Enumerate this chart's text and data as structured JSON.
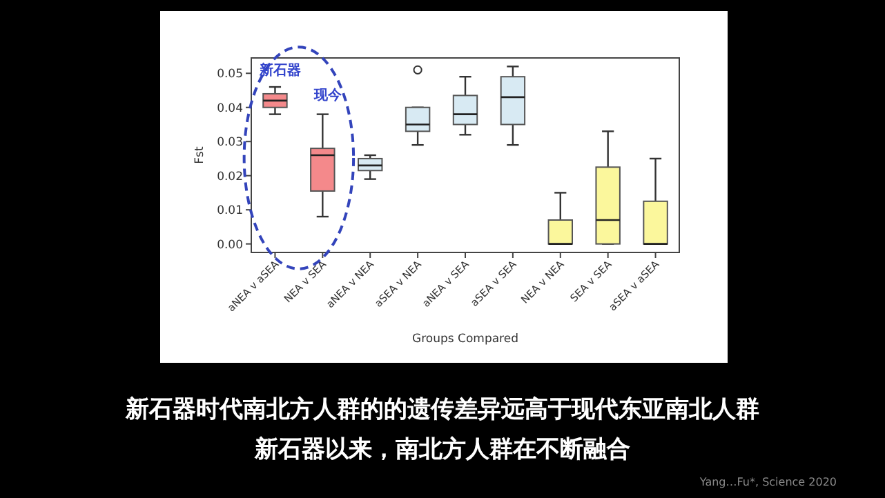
{
  "chart_data": {
    "type": "box",
    "title": "新石器时代南北方人群的的遗传差异远高于现代东亚南北人群",
    "subtitle": "新石器以来，南北方人群在不断融合",
    "xlabel": "Groups Compared",
    "ylabel": "Fst",
    "categories": [
      "aNEA v aSEA",
      "NEA v SEA",
      "aNEA v NEA",
      "aSEA v NEA",
      "aNEA v SEA",
      "aSEA v SEA",
      "NEA v NEA",
      "SEA v SEA",
      "aSEA v aSEA"
    ],
    "colors": [
      "#f4898b",
      "#f4898b",
      "#d8eaf3",
      "#d8eaf3",
      "#d8eaf3",
      "#d8eaf3",
      "#fbf79c",
      "#fbf79c",
      "#fbf79c"
    ],
    "boxes": [
      {
        "low": 0.038,
        "q1": 0.04,
        "median": 0.042,
        "q3": 0.044,
        "high": 0.046
      },
      {
        "low": 0.008,
        "q1": 0.0155,
        "median": 0.026,
        "q3": 0.028,
        "high": 0.038
      },
      {
        "low": 0.019,
        "q1": 0.0215,
        "median": 0.023,
        "q3": 0.025,
        "high": 0.026
      },
      {
        "low": 0.029,
        "q1": 0.033,
        "median": 0.035,
        "q3": 0.04,
        "high": 0.04,
        "outliers": [
          0.051
        ]
      },
      {
        "low": 0.032,
        "q1": 0.035,
        "median": 0.038,
        "q3": 0.0435,
        "high": 0.049
      },
      {
        "low": 0.029,
        "q1": 0.035,
        "median": 0.043,
        "q3": 0.049,
        "high": 0.052
      },
      {
        "low": 0,
        "q1": 0,
        "median": 0,
        "q3": 0.007,
        "high": 0.015
      },
      {
        "low": 0,
        "q1": 0,
        "median": 0.007,
        "q3": 0.0225,
        "high": 0.033
      },
      {
        "low": 0,
        "q1": 0,
        "median": 0,
        "q3": 0.0125,
        "high": 0.025
      }
    ],
    "ylim": [
      -0.0025,
      0.0545
    ],
    "yticks": [
      {
        "value": 0,
        "label": "0.00"
      },
      {
        "value": 0.01,
        "label": "0.01"
      },
      {
        "value": 0.02,
        "label": "0.02"
      },
      {
        "value": 0.03,
        "label": "0.03"
      },
      {
        "value": 0.04,
        "label": "0.04"
      },
      {
        "value": 0.05,
        "label": "0.05"
      }
    ],
    "annotations": [
      "新石器",
      "现今",
      "Yang…Fu*, Science 2020"
    ],
    "grid": false
  }
}
